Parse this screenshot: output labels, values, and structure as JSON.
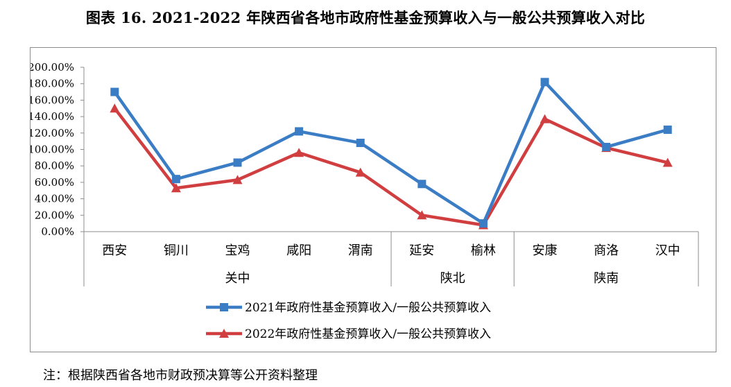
{
  "title": "图表 16.   2021-2022 年陕西省各地市政府性基金预算收入与一般公共预算收入对比",
  "note": "注：根据陕西省各地市财政预决算等公开资料整理",
  "chart_data": {
    "type": "line",
    "categories": [
      "西安",
      "铜川",
      "宝鸡",
      "咸阳",
      "渭南",
      "延安",
      "榆林",
      "安康",
      "商洛",
      "汉中"
    ],
    "groups": [
      {
        "name": "关中",
        "categories": [
          "西安",
          "铜川",
          "宝鸡",
          "咸阳",
          "渭南"
        ]
      },
      {
        "name": "陕北",
        "categories": [
          "延安",
          "榆林"
        ]
      },
      {
        "name": "陕南",
        "categories": [
          "安康",
          "商洛",
          "汉中"
        ]
      }
    ],
    "series": [
      {
        "name": "2021年政府性基金预算收入/一般公共预算收入",
        "color": "#3b7dc4",
        "marker": "square",
        "values": [
          170,
          64,
          84,
          122,
          108,
          58,
          10,
          182,
          103,
          124
        ]
      },
      {
        "name": "2022年政府性基金预算收入/一般公共预算收入",
        "color": "#d03e40",
        "marker": "triangle",
        "values": [
          150,
          53,
          63,
          96,
          72,
          20,
          8,
          137,
          102,
          84
        ]
      }
    ],
    "ylim": [
      0,
      200
    ],
    "yticks": [
      "0.00%",
      "20.00%",
      "40.00%",
      "60.00%",
      "80.00%",
      "100.00%",
      "120.00%",
      "140.00%",
      "160.00%",
      "180.00%",
      "200.00%"
    ],
    "legend": "bottom",
    "grid": false
  }
}
